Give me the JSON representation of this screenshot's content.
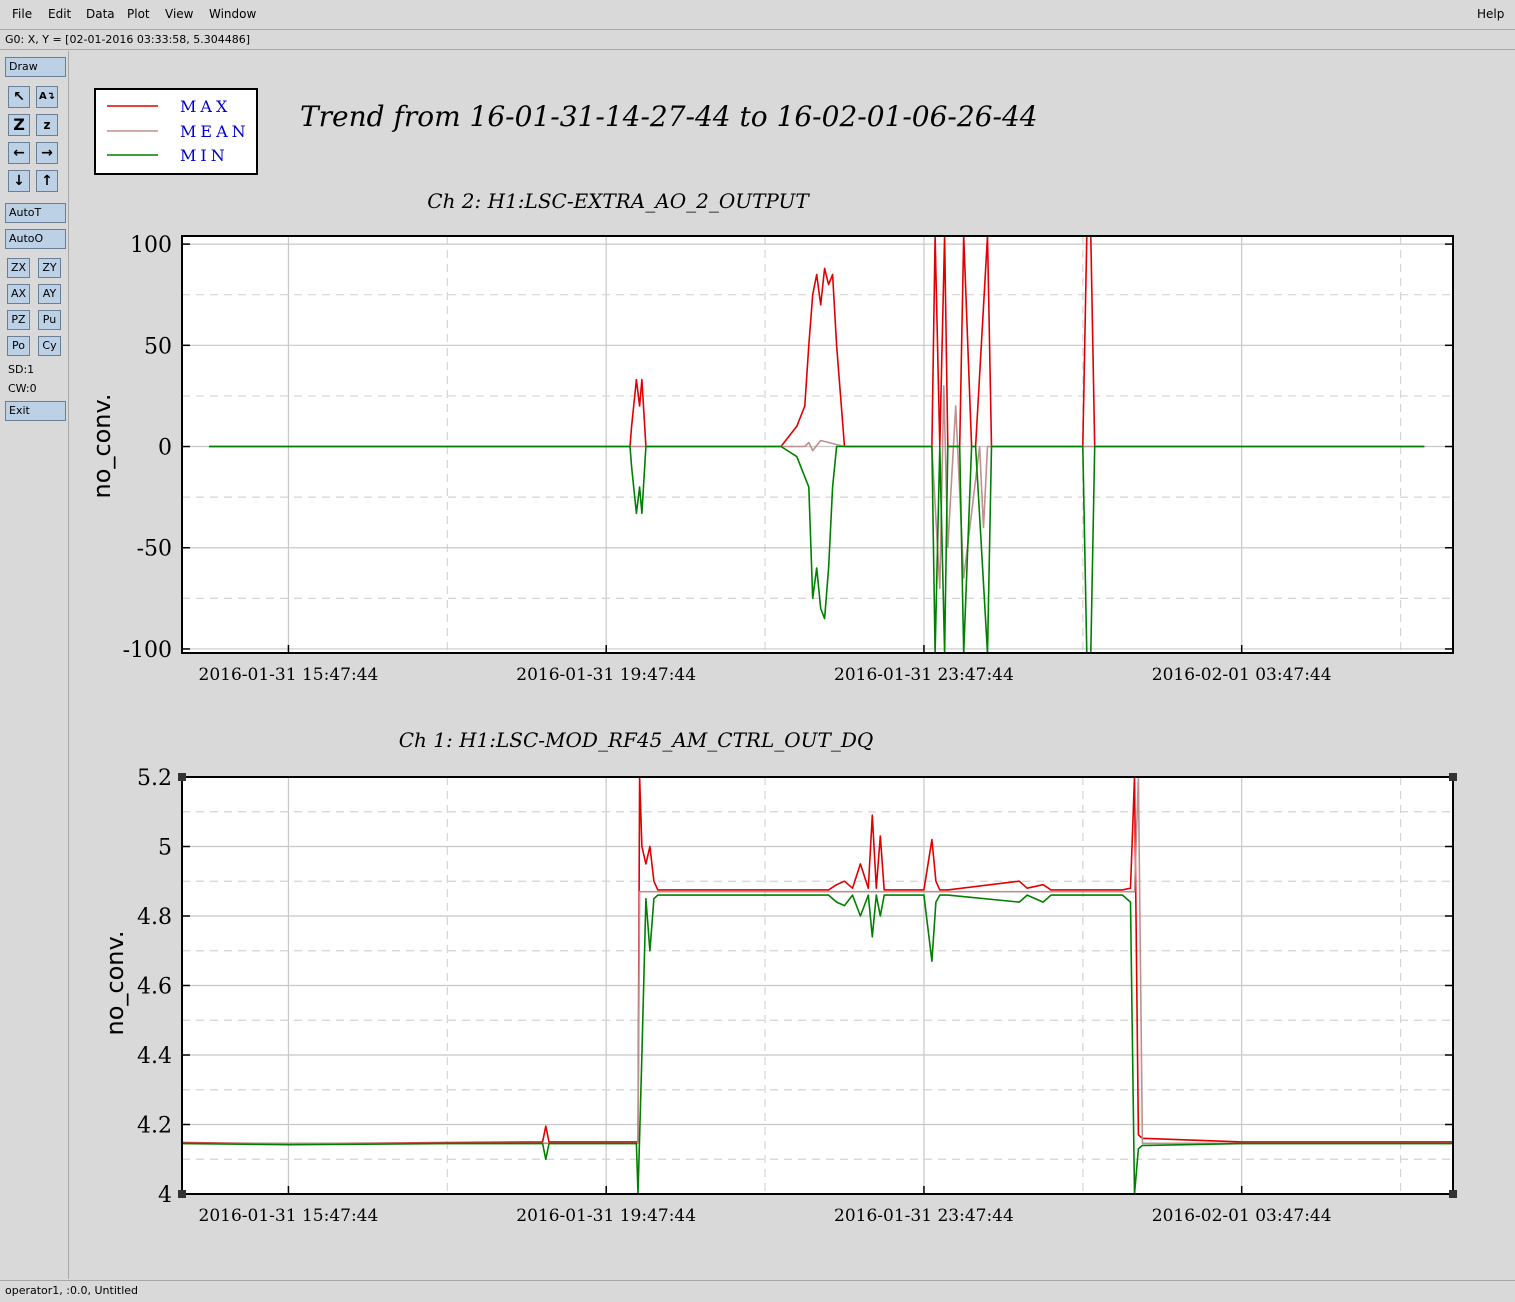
{
  "menu": {
    "file": "File",
    "edit": "Edit",
    "data": "Data",
    "plot": "Plot",
    "view": "View",
    "window": "Window",
    "help": "Help"
  },
  "coord_readout": "G0: X, Y = [02-01-2016 03:33:58, 5.304486]",
  "toolbar": {
    "draw": "Draw",
    "autot": "AutoT",
    "autoo": "AutoO",
    "zx": "ZX",
    "zy": "ZY",
    "ax": "AX",
    "ay": "AY",
    "pz": "PZ",
    "pu": "Pu",
    "po": "Po",
    "cy": "Cy",
    "sd": "SD:1",
    "cw": "CW:0",
    "exit": "Exit",
    "icons": [
      "zoom-in-icon",
      "auto-scale-icon",
      "zoom-out-icon",
      "zoom-small-icon",
      "pan-left-icon",
      "pan-right-icon",
      "pan-down-icon",
      "pan-up-icon"
    ]
  },
  "status": "operator1, :0.0, Untitled",
  "colors": {
    "max": "#e00000",
    "mean": "#c09090",
    "min": "#008000",
    "legend_text": "#0000cc"
  },
  "legend": [
    "MAX",
    "MEAN",
    "MIN"
  ],
  "main_title": "Trend from 16-01-31-14-27-44 to 16-02-01-06-26-44",
  "chart_data": [
    {
      "type": "line",
      "title": "Ch 2: H1:LSC-EXTRA_AO_2_OUTPUT",
      "xlabel": "",
      "ylabel": "no_conv.",
      "ylim": [
        -102,
        104
      ],
      "yticks": [
        100,
        50,
        0,
        -50,
        -100
      ],
      "ytick_labels": [
        "100",
        "50",
        "0",
        "-50",
        "-100"
      ],
      "xlim": [
        -1.34,
        14.66
      ],
      "xticks": [
        0,
        4,
        8,
        12
      ],
      "xtick_labels": [
        "2016-01-31 15:47:44",
        "2016-01-31 19:47:44",
        "2016-01-31 23:47:44",
        "2016-02-01 03:47:44"
      ],
      "grid": true,
      "series": [
        {
          "name": "MAX",
          "x": [
            -1.0,
            4.3,
            4.32,
            4.38,
            4.42,
            4.45,
            4.5,
            6.2,
            6.3,
            6.4,
            6.5,
            6.55,
            6.6,
            6.65,
            6.7,
            6.75,
            6.8,
            6.85,
            6.9,
            7.0,
            8.1,
            8.14,
            8.2,
            8.26,
            8.3,
            8.45,
            8.5,
            8.6,
            8.65,
            8.8,
            8.85,
            10.0,
            10.05,
            10.1,
            10.15,
            14.3
          ],
          "y": [
            0,
            0,
            10,
            33,
            20,
            33,
            0,
            0,
            5,
            10,
            20,
            50,
            75,
            85,
            70,
            88,
            80,
            85,
            50,
            0,
            0,
            110,
            0,
            110,
            0,
            0,
            110,
            0,
            0,
            110,
            0,
            0,
            110,
            110,
            0,
            0
          ]
        },
        {
          "name": "MEAN",
          "x": [
            -1.0,
            6.5,
            6.55,
            6.6,
            6.7,
            7.0,
            8.1,
            8.2,
            8.25,
            8.3,
            8.4,
            8.5,
            8.7,
            8.75,
            8.8,
            8.9,
            14.3
          ],
          "y": [
            0,
            0,
            2,
            -2,
            3,
            0,
            0,
            -70,
            30,
            -50,
            20,
            -65,
            0,
            -40,
            0,
            0,
            0
          ]
        },
        {
          "name": "MIN",
          "x": [
            -1.0,
            4.3,
            4.32,
            4.38,
            4.42,
            4.45,
            4.5,
            6.2,
            6.4,
            6.5,
            6.55,
            6.6,
            6.65,
            6.7,
            6.75,
            6.8,
            6.85,
            6.9,
            7.0,
            8.1,
            8.14,
            8.2,
            8.26,
            8.3,
            8.45,
            8.5,
            8.6,
            8.65,
            8.8,
            8.85,
            10.0,
            10.05,
            10.1,
            10.15,
            14.3
          ],
          "y": [
            0,
            0,
            -10,
            -33,
            -20,
            -33,
            0,
            0,
            -5,
            -15,
            -20,
            -75,
            -60,
            -80,
            -85,
            -60,
            -20,
            0,
            0,
            0,
            -110,
            0,
            -110,
            0,
            0,
            -110,
            0,
            0,
            -110,
            0,
            0,
            -110,
            -110,
            0,
            0
          ]
        }
      ]
    },
    {
      "type": "line",
      "title": "Ch 1: H1:LSC-MOD_RF45_AM_CTRL_OUT_DQ",
      "xlabel": "",
      "ylabel": "no_conv.",
      "ylim": [
        4.0,
        5.2
      ],
      "yticks": [
        5.2,
        5.0,
        4.8,
        4.6,
        4.4,
        4.2,
        4.0
      ],
      "ytick_labels": [
        "5.2",
        "5",
        "4.8",
        "4.6",
        "4.4",
        "4.2",
        "4"
      ],
      "xlim": [
        -1.34,
        14.66
      ],
      "xticks": [
        0,
        4,
        8,
        12
      ],
      "xtick_labels": [
        "2016-01-31 15:47:44",
        "2016-01-31 19:47:44",
        "2016-01-31 23:47:44",
        "2016-02-01 03:47:44"
      ],
      "grid": true,
      "series": [
        {
          "name": "MAX",
          "x": [
            -1.34,
            0,
            2.0,
            3.2,
            3.24,
            3.28,
            3.5,
            4.4,
            4.42,
            4.45,
            4.5,
            4.55,
            4.6,
            4.65,
            6.8,
            6.9,
            7.0,
            7.1,
            7.2,
            7.3,
            7.35,
            7.4,
            7.45,
            7.5,
            8.0,
            8.1,
            8.15,
            8.2,
            8.3,
            9.2,
            9.3,
            9.5,
            9.6,
            10.5,
            10.6,
            10.65,
            10.7,
            10.75,
            10.8,
            12.0,
            14.66
          ],
          "y": [
            4.148,
            4.145,
            4.148,
            4.15,
            4.195,
            4.15,
            4.15,
            4.15,
            5.25,
            5.0,
            4.95,
            5.0,
            4.9,
            4.875,
            4.875,
            4.89,
            4.9,
            4.88,
            4.95,
            4.88,
            5.09,
            4.88,
            5.03,
            4.875,
            4.875,
            5.02,
            4.9,
            4.875,
            4.875,
            4.9,
            4.88,
            4.89,
            4.875,
            4.875,
            4.88,
            5.3,
            4.17,
            4.16,
            4.16,
            4.15,
            4.15
          ]
        },
        {
          "name": "MEAN",
          "x": [
            -1.34,
            4.4,
            4.42,
            4.45,
            10.65,
            10.7,
            10.75,
            14.66
          ],
          "y": [
            4.146,
            4.146,
            4.87,
            4.87,
            4.87,
            5.25,
            4.146,
            4.146
          ]
        },
        {
          "name": "MIN",
          "x": [
            -1.34,
            0,
            2.0,
            3.2,
            3.24,
            3.28,
            3.5,
            4.38,
            4.4,
            4.45,
            4.5,
            4.55,
            4.6,
            4.65,
            6.8,
            6.9,
            7.0,
            7.1,
            7.2,
            7.3,
            7.35,
            7.4,
            7.45,
            7.5,
            8.0,
            8.1,
            8.15,
            8.2,
            8.3,
            9.2,
            9.3,
            9.5,
            9.6,
            10.5,
            10.6,
            10.65,
            10.7,
            10.75,
            10.8,
            12.0,
            14.66
          ],
          "y": [
            4.145,
            4.142,
            4.145,
            4.145,
            4.1,
            4.145,
            4.145,
            4.145,
            3.95,
            4.4,
            4.85,
            4.7,
            4.85,
            4.86,
            4.86,
            4.84,
            4.83,
            4.86,
            4.8,
            4.86,
            4.74,
            4.86,
            4.8,
            4.86,
            4.86,
            4.67,
            4.84,
            4.86,
            4.86,
            4.84,
            4.86,
            4.84,
            4.86,
            4.86,
            4.84,
            3.95,
            4.13,
            4.14,
            4.14,
            4.145,
            4.145
          ]
        }
      ]
    }
  ]
}
